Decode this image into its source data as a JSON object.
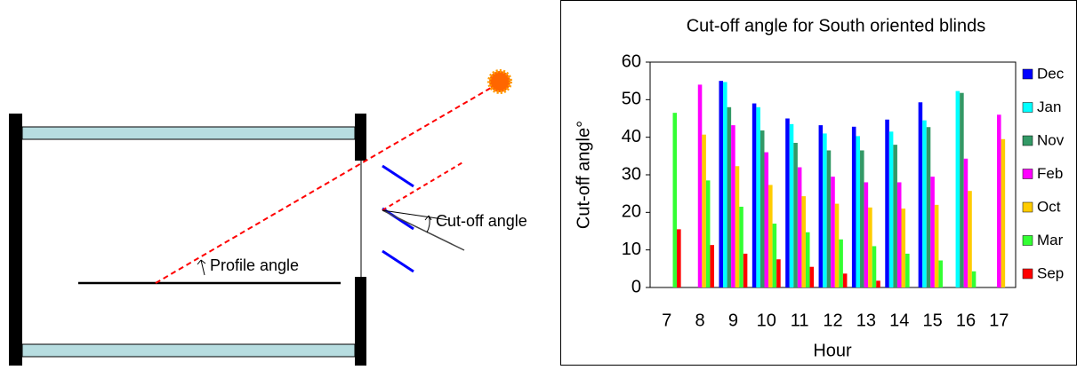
{
  "diagram": {
    "labels": [
      "Cut-off angle",
      "Profile angle"
    ]
  },
  "chart_data": {
    "type": "bar",
    "title": "Cut-off angle for South oriented blinds",
    "x_label": "Hour",
    "y_label": "Cut-off angle°",
    "categories": [
      "7",
      "8",
      "9",
      "10",
      "11",
      "12",
      "13",
      "14",
      "15",
      "16",
      "17"
    ],
    "series": [
      {
        "name": "Dec",
        "color": "#0000ff",
        "values": [
          null,
          null,
          55,
          49,
          45,
          43.2,
          42.8,
          44.7,
          49.3,
          null,
          null
        ]
      },
      {
        "name": "Jan",
        "color": "#00ffff",
        "values": [
          null,
          null,
          54.7,
          48,
          43.5,
          41,
          40.3,
          41.5,
          44.5,
          52.3,
          null
        ]
      },
      {
        "name": "Nov",
        "color": "#339966",
        "values": [
          null,
          null,
          48,
          41.8,
          38.5,
          36.5,
          36.5,
          38,
          42.7,
          51.8,
          null
        ]
      },
      {
        "name": "Feb",
        "color": "#ff00ff",
        "values": [
          null,
          54,
          43.2,
          36,
          32,
          29.5,
          28,
          28,
          29.5,
          34.3,
          46
        ]
      },
      {
        "name": "Oct",
        "color": "#ffcc00",
        "values": [
          null,
          40.7,
          32.3,
          27.3,
          24.3,
          22.3,
          21.3,
          21,
          22,
          25.7,
          39.5
        ]
      },
      {
        "name": "Mar",
        "color": "#33ff33",
        "values": [
          46.5,
          28.5,
          21.5,
          17,
          14.7,
          12.8,
          11,
          9,
          7.2,
          4.3,
          null
        ]
      },
      {
        "name": "Sep",
        "color": "#ff0000",
        "values": [
          15.5,
          11.3,
          9,
          7.5,
          5.5,
          3.7,
          1.8,
          null,
          null,
          null,
          null
        ]
      }
    ],
    "ylim": [
      0,
      60
    ],
    "yticks": [
      0,
      10,
      20,
      30,
      40,
      50,
      60
    ],
    "grid": false,
    "legend": "right"
  }
}
